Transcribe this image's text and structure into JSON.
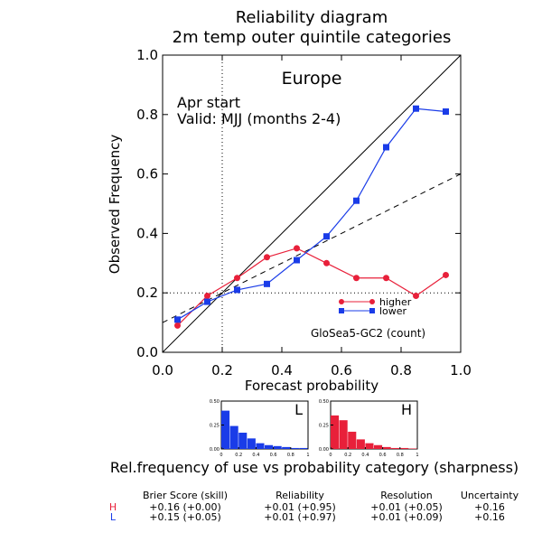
{
  "chart_data": {
    "type": "line",
    "title_line1": "Reliability diagram",
    "title_line2": "2m temp outer quintile categories",
    "region": "Europe",
    "start": "Apr start",
    "valid": "Valid: MJJ (months 2-4)",
    "xlabel": "Forecast probability",
    "ylabel": "Observed Frequency",
    "xlim": [
      0.0,
      1.0
    ],
    "ylim": [
      0.0,
      1.0
    ],
    "xticks": [
      "0.0",
      "0.2",
      "0.4",
      "0.6",
      "0.8",
      "1.0"
    ],
    "yticks": [
      "0.0",
      "0.2",
      "0.4",
      "0.6",
      "0.8",
      "1.0"
    ],
    "climatology": 0.2,
    "series": [
      {
        "name": "higher",
        "color": "#e8203a",
        "marker": "circle",
        "x": [
          0.05,
          0.15,
          0.25,
          0.35,
          0.45,
          0.55,
          0.65,
          0.75,
          0.85,
          0.95
        ],
        "y": [
          0.09,
          0.19,
          0.25,
          0.32,
          0.35,
          0.3,
          0.25,
          0.25,
          0.19,
          0.26
        ]
      },
      {
        "name": "lower",
        "color": "#1a3ce8",
        "marker": "square",
        "x": [
          0.05,
          0.15,
          0.25,
          0.35,
          0.45,
          0.55,
          0.65,
          0.75,
          0.85,
          0.95
        ],
        "y": [
          0.11,
          0.17,
          0.21,
          0.23,
          0.31,
          0.39,
          0.51,
          0.69,
          0.82,
          0.81
        ]
      }
    ],
    "model_label": "GloSea5-GC2 (count)",
    "sharpness": {
      "caption": "Rel.frequency of use vs probability category (sharpness)",
      "yticks": [
        "0.50",
        "0.25",
        "0.00"
      ],
      "xticks": [
        "0",
        "0.2",
        "0.4",
        "0.6",
        "0.8",
        "1"
      ],
      "ylim": [
        0,
        0.5
      ],
      "L": {
        "label": "L",
        "color": "#1a3ce8",
        "values": [
          0.4,
          0.24,
          0.17,
          0.11,
          0.06,
          0.04,
          0.03,
          0.02,
          0.01,
          0.01
        ]
      },
      "H": {
        "label": "H",
        "color": "#e8203a",
        "values": [
          0.35,
          0.3,
          0.18,
          0.1,
          0.06,
          0.04,
          0.02,
          0.01,
          0.01,
          0.005
        ]
      }
    },
    "scores": {
      "headers": [
        "Brier Score (skill)",
        "Reliability",
        "Resolution",
        "Uncertainty"
      ],
      "rows": [
        {
          "label": "H",
          "color": "#e8203a",
          "values": [
            "+0.16  (+0.00)",
            "+0.01  (+0.95)",
            "+0.01  (+0.05)",
            "+0.16"
          ]
        },
        {
          "label": "L",
          "color": "#1a3ce8",
          "values": [
            "+0.15  (+0.05)",
            "+0.01  (+0.97)",
            "+0.01  (+0.09)",
            "+0.16"
          ]
        }
      ]
    }
  }
}
